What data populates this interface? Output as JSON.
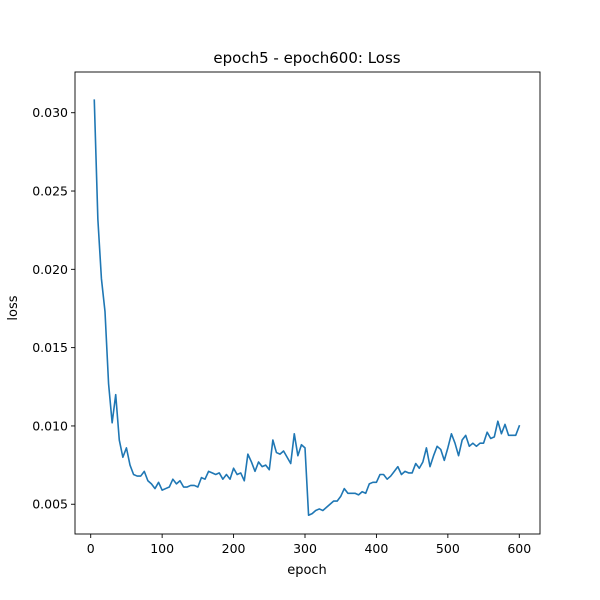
{
  "chart_data": {
    "type": "line",
    "title": "epoch5 - epoch600: Loss",
    "xlabel": "epoch",
    "ylabel": "loss",
    "xlim": [
      -22,
      629
    ],
    "ylim": [
      0.0031,
      0.0326
    ],
    "xticks": [
      0,
      100,
      200,
      300,
      400,
      500,
      600
    ],
    "yticks": [
      0.005,
      0.01,
      0.015,
      0.02,
      0.025,
      0.03
    ],
    "xtick_labels": [
      "0",
      "100",
      "200",
      "300",
      "400",
      "500",
      "600"
    ],
    "ytick_labels": [
      "0.005",
      "0.010",
      "0.015",
      "0.020",
      "0.025",
      "0.030"
    ],
    "grid": false,
    "color": "#1f77b4",
    "series": [
      {
        "x": [
          5,
          10,
          15,
          20,
          25,
          30,
          35,
          40,
          45,
          50,
          55,
          60,
          65,
          70,
          75,
          80,
          85,
          90,
          95,
          100,
          105,
          110,
          115,
          120,
          125,
          130,
          135,
          140,
          145,
          150,
          155,
          160,
          165,
          170,
          175,
          180,
          185,
          190,
          195,
          200,
          205,
          210,
          215,
          220,
          225,
          230,
          235,
          240,
          245,
          250,
          255,
          260,
          265,
          270,
          275,
          280,
          285,
          290,
          295,
          300,
          305,
          310,
          315,
          320,
          325,
          330,
          335,
          340,
          345,
          350,
          355,
          360,
          365,
          370,
          375,
          380,
          385,
          390,
          395,
          400,
          405,
          410,
          415,
          420,
          425,
          430,
          435,
          440,
          445,
          450,
          455,
          460,
          465,
          470,
          475,
          480,
          485,
          490,
          495,
          500,
          505,
          510,
          515,
          520,
          525,
          530,
          535,
          540,
          545,
          550,
          555,
          560,
          565,
          570,
          575,
          580,
          585,
          590,
          595,
          600
        ],
        "y": [
          0.0308,
          0.0232,
          0.0194,
          0.0173,
          0.0127,
          0.0102,
          0.012,
          0.0091,
          0.008,
          0.0086,
          0.0075,
          0.0069,
          0.0068,
          0.0068,
          0.0071,
          0.0065,
          0.0063,
          0.006,
          0.0064,
          0.0059,
          0.006,
          0.0061,
          0.0066,
          0.0063,
          0.0065,
          0.0061,
          0.0061,
          0.0062,
          0.0062,
          0.0061,
          0.0067,
          0.0066,
          0.0071,
          0.007,
          0.0069,
          0.007,
          0.0066,
          0.0069,
          0.0066,
          0.0073,
          0.0069,
          0.007,
          0.0065,
          0.0082,
          0.0077,
          0.0071,
          0.0077,
          0.0074,
          0.0075,
          0.0072,
          0.0091,
          0.0083,
          0.0082,
          0.0084,
          0.008,
          0.0076,
          0.0095,
          0.0081,
          0.0088,
          0.0086,
          0.0043,
          0.0044,
          0.0046,
          0.0047,
          0.0046,
          0.0048,
          0.005,
          0.0052,
          0.0052,
          0.0055,
          0.006,
          0.0057,
          0.0057,
          0.0057,
          0.0056,
          0.0058,
          0.0057,
          0.0063,
          0.0064,
          0.0064,
          0.0069,
          0.0069,
          0.0066,
          0.0068,
          0.0071,
          0.0074,
          0.0069,
          0.0071,
          0.007,
          0.007,
          0.0076,
          0.0073,
          0.0077,
          0.0086,
          0.0074,
          0.0081,
          0.0087,
          0.0085,
          0.0078,
          0.0086,
          0.0095,
          0.0089,
          0.0081,
          0.0091,
          0.0094,
          0.0087,
          0.0089,
          0.0087,
          0.0089,
          0.0089,
          0.0096,
          0.0092,
          0.0093,
          0.0103,
          0.0095,
          0.0101,
          0.0094,
          0.0094,
          0.0094,
          0.01
        ]
      }
    ]
  }
}
